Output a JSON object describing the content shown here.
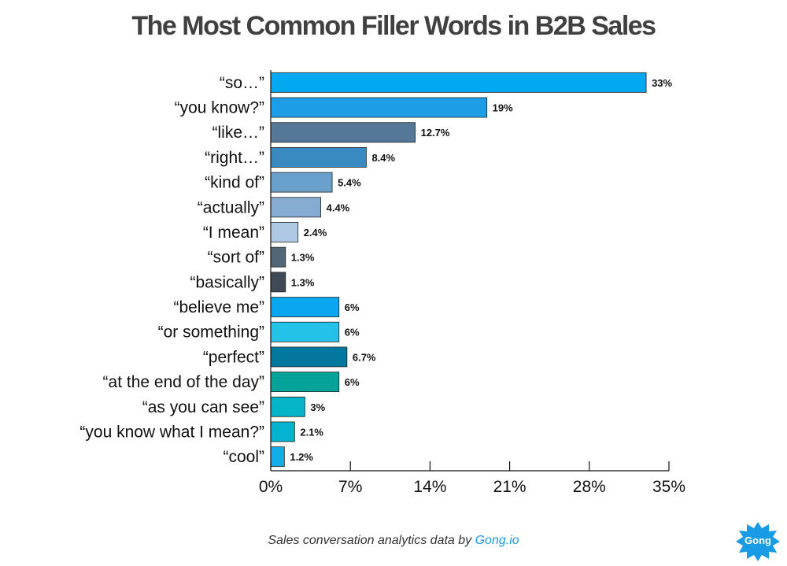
{
  "title": "The Most Common Filler Words in B2B Sales",
  "footer": {
    "text": "Sales conversation analytics data by ",
    "link": "Gong.io"
  },
  "logo": {
    "text": "Gong",
    "color": "#1a9be6"
  },
  "chart_data": {
    "type": "bar",
    "orientation": "horizontal",
    "title": "The Most Common Filler Words in B2B Sales",
    "xlabel": "",
    "ylabel": "",
    "xlim": [
      0,
      35
    ],
    "x_ticks": [
      "0%",
      "7%",
      "14%",
      "21%",
      "28%",
      "35%"
    ],
    "grid": false,
    "categories": [
      "“so…”",
      "“you know?”",
      "“like…”",
      "“right…”",
      "“kind of”",
      "“actually”",
      "“I mean”",
      "“sort of”",
      "“basically”",
      "“believe me”",
      "“or something”",
      "“perfect”",
      "“at the end of the day”",
      "“as you can see”",
      "“you know what I mean?”",
      "“cool”"
    ],
    "values": [
      33,
      19,
      12.7,
      8.4,
      5.4,
      4.4,
      2.4,
      1.3,
      1.3,
      6,
      6,
      6.7,
      6,
      3,
      2.1,
      1.2
    ],
    "value_labels": [
      "33%",
      "19%",
      "12.7%",
      "8.4%",
      "5.4%",
      "4.4%",
      "2.4%",
      "1.3%",
      "1.3%",
      "6%",
      "6%",
      "6.7%",
      "6%",
      "3%",
      "2.1%",
      "1.2%"
    ],
    "colors": [
      "#03a9f0",
      "#1d9de6",
      "#557899",
      "#398ac1",
      "#6aa0cc",
      "#86acd2",
      "#afc9e4",
      "#516677",
      "#3f4a56",
      "#0ba6f0",
      "#24c2e8",
      "#02789f",
      "#04a39a",
      "#03b5c7",
      "#03b3cf",
      "#13aee6"
    ]
  }
}
